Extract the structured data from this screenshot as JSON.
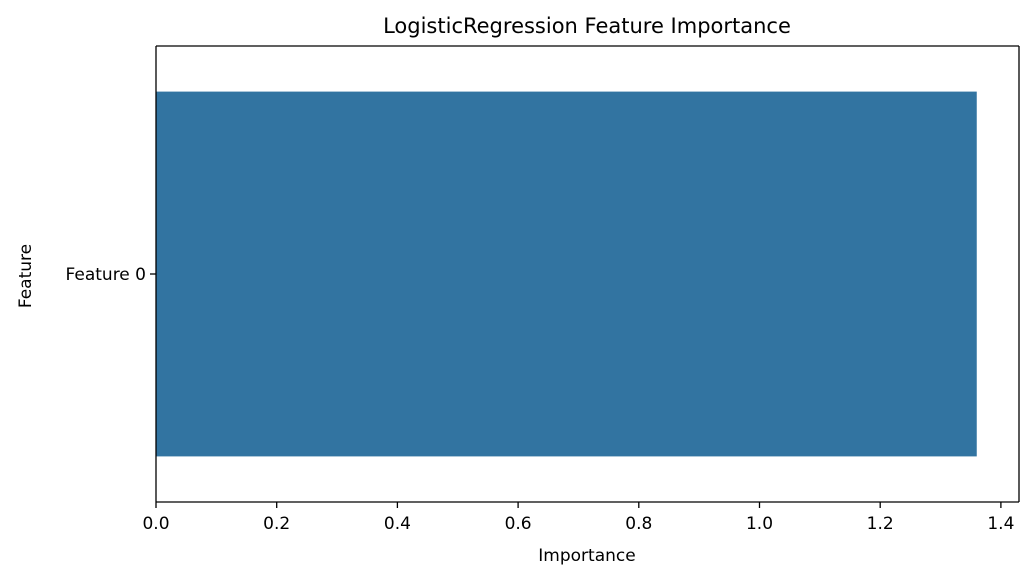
{
  "chart_data": {
    "type": "bar",
    "orientation": "horizontal",
    "title": "LogisticRegression Feature Importance",
    "xlabel": "Importance",
    "ylabel": "Feature",
    "categories": [
      "Feature 0"
    ],
    "values": [
      1.36
    ],
    "xlim": [
      0,
      1.43
    ],
    "xticks": [
      "0.0",
      "0.2",
      "0.4",
      "0.6",
      "0.8",
      "1.0",
      "1.2",
      "1.4"
    ],
    "grid": false,
    "bar_color": "#3274a1"
  }
}
